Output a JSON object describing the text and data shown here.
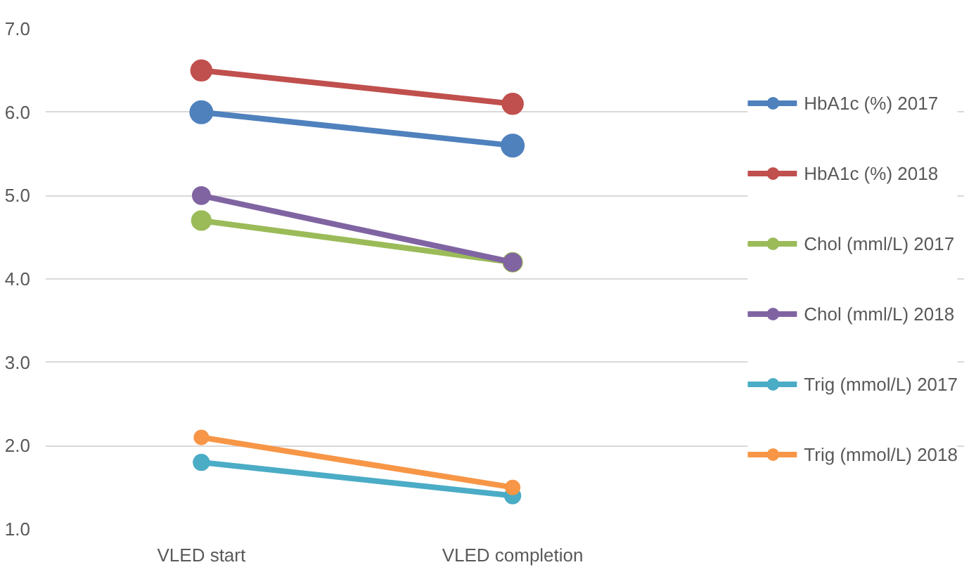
{
  "chart_data": {
    "type": "line",
    "categories": [
      "VLED start",
      "VLED completion"
    ],
    "series": [
      {
        "name": "HbA1c (%) 2017",
        "color": "#4f81bd",
        "values": [
          6.0,
          5.6
        ]
      },
      {
        "name": "HbA1c (%) 2018",
        "color": "#c0504d",
        "values": [
          6.5,
          6.1
        ]
      },
      {
        "name": "Chol (mml/L) 2017",
        "color": "#9bbb59",
        "values": [
          4.7,
          4.2
        ]
      },
      {
        "name": "Chol (mml/L) 2018",
        "color": "#8064a2",
        "values": [
          5.0,
          4.2
        ]
      },
      {
        "name": "Trig (mmol/L) 2017",
        "color": "#4bacc6",
        "values": [
          1.8,
          1.4
        ]
      },
      {
        "name": "Trig (mmol/L) 2018",
        "color": "#f79646",
        "values": [
          2.1,
          1.5
        ]
      }
    ],
    "ylim": [
      1,
      7
    ],
    "yticks": [
      {
        "value": 1,
        "label": "1.0"
      },
      {
        "value": 2,
        "label": "2.0"
      },
      {
        "value": 3,
        "label": "3.0"
      },
      {
        "value": 4,
        "label": "4.0"
      },
      {
        "value": 5,
        "label": "5.0"
      },
      {
        "value": 6,
        "label": "6.0"
      },
      {
        "value": 7,
        "label": "7.0"
      }
    ],
    "grid": "y",
    "legend": "right",
    "marker": "circle",
    "line_style": "solid"
  }
}
